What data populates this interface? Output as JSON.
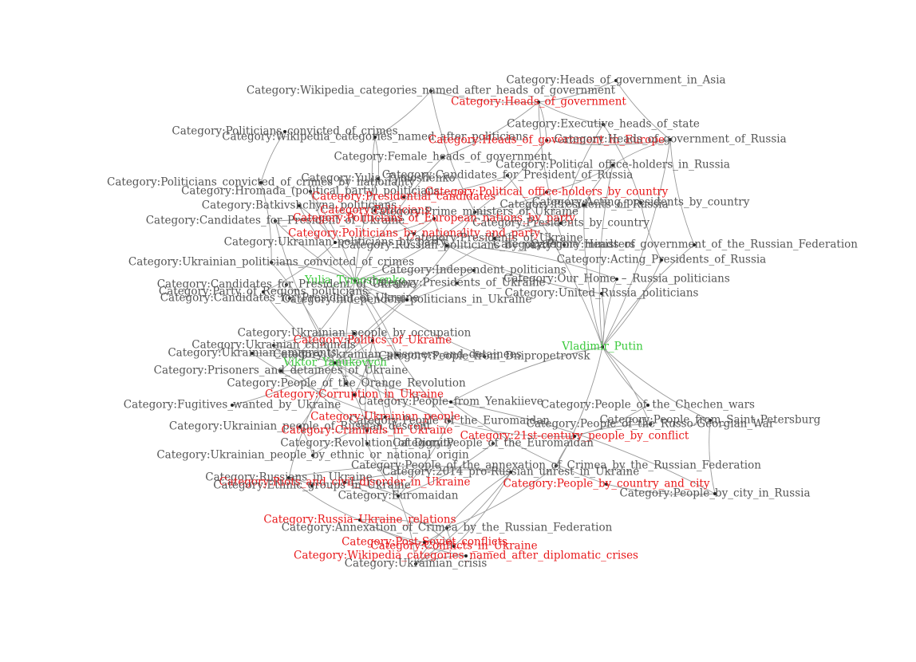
{
  "colors": {
    "background": "#ffffff",
    "edge": "#9a9a9a",
    "label_default": "#555555",
    "label_highlight": "#e8191b",
    "label_focus": "#39c93b"
  },
  "graph": {
    "nodes": [
      {
        "id": "putin",
        "label": "Vladimir_Putin",
        "style": "focus"
      },
      {
        "id": "yanukovych",
        "label": "Viktor_Yanukovych",
        "style": "focus"
      },
      {
        "id": "tymoshenko",
        "label": "Yulia_Tymoshenko",
        "style": "focus"
      },
      {
        "id": "heads_asia",
        "label": "Category:Heads_of_government_in_Asia",
        "style": "default"
      },
      {
        "id": "heads_gov",
        "label": "Category:Heads_of_government",
        "style": "highlight"
      },
      {
        "id": "wiki_heads",
        "label": "Category:Wikipedia_categories_named_after_heads_of_government",
        "style": "default"
      },
      {
        "id": "exec_heads",
        "label": "Category:Executive_heads_of_state",
        "style": "default"
      },
      {
        "id": "wiki_politicians",
        "label": "Category:Wikipedia_categories_named_after_politicians",
        "style": "default"
      },
      {
        "id": "heads_europe",
        "label": "Category:Heads_of_government_in_Europe",
        "style": "highlight"
      },
      {
        "id": "heads_russia",
        "label": "Category:Heads_of_government_of_Russia",
        "style": "default"
      },
      {
        "id": "pol_convicted",
        "label": "Category:Politicians_convicted_of_crimes",
        "style": "default"
      },
      {
        "id": "female_heads",
        "label": "Category:Female_heads_of_government",
        "style": "default"
      },
      {
        "id": "pol_office_russia",
        "label": "Category:Political_office-holders_in_Russia",
        "style": "default"
      },
      {
        "id": "cand_pres_russia",
        "label": "Category:Candidates_for_President_of_Russia",
        "style": "default"
      },
      {
        "id": "pol_conv_nat",
        "label": "Category:Politicians_convicted_of_crimes_by_nationality",
        "style": "default"
      },
      {
        "id": "yulia_cat",
        "label": "Category:Yulia_Tymoshenko",
        "style": "default"
      },
      {
        "id": "hromada",
        "label": "Category:Hromada_(political_party)_politicians",
        "style": "default"
      },
      {
        "id": "pol_office_country",
        "label": "Category:Political_office-holders_by_country",
        "style": "highlight"
      },
      {
        "id": "pres_candidates",
        "label": "Category:Presidential_candidates",
        "style": "highlight"
      },
      {
        "id": "acting_pres_country",
        "label": "Category:Acting_presidents_by_country",
        "style": "default"
      },
      {
        "id": "batkiv",
        "label": "Category:Batkivshchyna_politicians",
        "style": "default"
      },
      {
        "id": "pres_russia",
        "label": "Category:Presidents_of_Russia",
        "style": "default"
      },
      {
        "id": "politicians",
        "label": "Category:Politicians",
        "style": "highlight"
      },
      {
        "id": "pm_ukraine",
        "label": "Category:Prime_ministers_of_Ukraine",
        "style": "default"
      },
      {
        "id": "cand_pres_ukraine",
        "label": "Category:Candidates_for_President_of_Ukraine",
        "style": "default"
      },
      {
        "id": "pol_euro_party",
        "label": "Category:Politicians_of_European_nations_by_party",
        "style": "highlight"
      },
      {
        "id": "pres_country",
        "label": "Category:Presidents_by_country",
        "style": "default"
      },
      {
        "id": "pol_nat_party",
        "label": "Category:Politicians_by_nationality_and_party",
        "style": "highlight"
      },
      {
        "id": "pres_ukraine",
        "label": "Category:Presidents_of_Ukraine",
        "style": "default"
      },
      {
        "id": "ukr_pol_party",
        "label": "Category:Ukrainian_politicians_by_party",
        "style": "default"
      },
      {
        "id": "russ_pol_party",
        "label": "Category:Russian_politicians_by_party",
        "style": "default"
      },
      {
        "id": "heads_russia_fed",
        "label": "Category:Heads_of_government_of_the_Russian_Federation",
        "style": "default"
      },
      {
        "id": "prime_ministers",
        "label": "Category:Prime_ministers",
        "style": "default"
      },
      {
        "id": "ukr_pol_convicted",
        "label": "Category:Ukrainian_politicians_convicted_of_crimes",
        "style": "default"
      },
      {
        "id": "acting_pres_russia",
        "label": "Category:Acting_Presidents_of_Russia",
        "style": "default"
      },
      {
        "id": "indep_pol",
        "label": "Category:Independent_politicians",
        "style": "default"
      },
      {
        "id": "our_home",
        "label": "Category:Our_Home_–_Russia_politicians",
        "style": "default"
      },
      {
        "id": "cand_pres_ukraine2",
        "label": "Category:Candidates_for_President_of_Ukraine",
        "style": "default"
      },
      {
        "id": "pres_ukraine2",
        "label": "Category:Presidents_of_Ukraine",
        "style": "default"
      },
      {
        "id": "party_regions",
        "label": "Category:Party_of_Regions_politicians",
        "style": "default"
      },
      {
        "id": "united_russia",
        "label": "Category:United_Russia_politicians",
        "style": "default"
      },
      {
        "id": "cand_pres_ukraine3",
        "label": "Category:Candidates_for_President_of_Ukraine",
        "style": "default"
      },
      {
        "id": "indep_pol_ukraine",
        "label": "Category:Independent_politicians_in_Ukraine",
        "style": "default"
      },
      {
        "id": "ukr_by_occupation",
        "label": "Category:Ukrainian_people_by_occupation",
        "style": "default"
      },
      {
        "id": "politics_ukraine",
        "label": "Category:Politics_of_Ukraine",
        "style": "highlight"
      },
      {
        "id": "ukr_criminals",
        "label": "Category:Ukrainian_criminals",
        "style": "default"
      },
      {
        "id": "ukr_emigrants",
        "label": "Category:Ukrainian_emigrants",
        "style": "default"
      },
      {
        "id": "ukr_prisoners",
        "label": "Category:Ukrainian_prisoners_and_detainees",
        "style": "default"
      },
      {
        "id": "people_dnipro",
        "label": "Category:People_from_Dnipropetrovsk",
        "style": "default"
      },
      {
        "id": "prisoners_ukraine",
        "label": "Category:Prisoners_and_detainees_of_Ukraine",
        "style": "default"
      },
      {
        "id": "orange_rev",
        "label": "Category:People_of_the_Orange_Revolution",
        "style": "default"
      },
      {
        "id": "corruption",
        "label": "Category:Corruption_in_Ukraine",
        "style": "highlight"
      },
      {
        "id": "fugitives",
        "label": "Category:Fugitives_wanted_by_Ukraine",
        "style": "default"
      },
      {
        "id": "people_yenakiieve",
        "label": "Category:People_from_Yenakiieve",
        "style": "default"
      },
      {
        "id": "chechen_wars",
        "label": "Category:People_of_the_Chechen_wars",
        "style": "default"
      },
      {
        "id": "ukr_people",
        "label": "Category:Ukrainian_people",
        "style": "highlight"
      },
      {
        "id": "euromaidan_people",
        "label": "Category:People_of_the_Euromaidan",
        "style": "default"
      },
      {
        "id": "people_spb",
        "label": "Category:People_from_Saint_Petersburg",
        "style": "default"
      },
      {
        "id": "ukr_ethnic_people",
        "label": "Category:Ukrainian_people_of_Russian_descent",
        "style": "default"
      },
      {
        "id": "criminals_ukraine",
        "label": "Category:Criminals_in_Ukraine",
        "style": "highlight"
      },
      {
        "id": "russo_georgian",
        "label": "Category:People_of_the_Russo-Georgian_War",
        "style": "default"
      },
      {
        "id": "conflicts_21c",
        "label": "Category:21st-century_people_by_conflict",
        "style": "highlight"
      },
      {
        "id": "ukr_by_ethnic",
        "label": "Category:Ukrainian_people_by_ethnic_or_national_origin",
        "style": "default"
      },
      {
        "id": "rev_dignity",
        "label": "Category:Revolution_of_Dignity",
        "style": "default"
      },
      {
        "id": "people_euromaidan2",
        "label": "Category:People_of_the_Euromaidan",
        "style": "default"
      },
      {
        "id": "annex_people",
        "label": "Category:People_of_the_annexation_of_Crimea_by_the_Russian_Federation",
        "style": "default"
      },
      {
        "id": "russians_ukraine",
        "label": "Category:Russians_in_Ukraine",
        "style": "default"
      },
      {
        "id": "unrest_2014",
        "label": "Category:2014_pro-Russian_unrest_in_Ukraine",
        "style": "default"
      },
      {
        "id": "riots",
        "label": "Category:Riots_and_civil_disorder_in_Ukraine",
        "style": "highlight"
      },
      {
        "id": "ethnic_groups",
        "label": "Category:Ethnic_groups_in_Ukraine",
        "style": "default"
      },
      {
        "id": "people_country_city",
        "label": "Category:People_by_country_and_city",
        "style": "highlight"
      },
      {
        "id": "people_city_russia",
        "label": "Category:People_by_city_in_Russia",
        "style": "default"
      },
      {
        "id": "euromaidan",
        "label": "Category:Euromaidan",
        "style": "default"
      },
      {
        "id": "russia_ukraine",
        "label": "Category:Russia–Ukraine_relations",
        "style": "highlight"
      },
      {
        "id": "annex_crimea",
        "label": "Category:Annexation_of_Crimea_by_the_Russian_Federation",
        "style": "default"
      },
      {
        "id": "post_soviet",
        "label": "Category:Post-Soviet_conflicts",
        "style": "highlight"
      },
      {
        "id": "conflicts_ukraine",
        "label": "Category:Conflicts_in_Ukraine",
        "style": "highlight"
      },
      {
        "id": "wiki_diplomatic",
        "label": "Category:Wikipedia_categories_named_after_diplomatic_crises",
        "style": "highlight"
      },
      {
        "id": "ukr_crisis",
        "label": "Category:Ukrainian_crisis",
        "style": "default"
      }
    ],
    "edges": [
      [
        "putin",
        "heads_russia"
      ],
      [
        "putin",
        "pres_russia"
      ],
      [
        "putin",
        "acting_pres_russia"
      ],
      [
        "putin",
        "our_home"
      ],
      [
        "putin",
        "united_russia"
      ],
      [
        "putin",
        "heads_russia_fed"
      ],
      [
        "putin",
        "chechen_wars"
      ],
      [
        "putin",
        "russo_georgian"
      ],
      [
        "putin",
        "people_spb"
      ],
      [
        "putin",
        "annex_people"
      ],
      [
        "putin",
        "cand_pres_russia"
      ],
      [
        "putin",
        "pol_office_russia"
      ],
      [
        "putin",
        "people_yenakiieve"
      ],
      [
        "yanukovych",
        "pres_ukraine"
      ],
      [
        "yanukovych",
        "pm_ukraine"
      ],
      [
        "yanukovych",
        "party_regions"
      ],
      [
        "yanukovych",
        "ukr_pol_convicted"
      ],
      [
        "yanukovych",
        "cand_pres_ukraine"
      ],
      [
        "yanukovych",
        "people_yenakiieve"
      ],
      [
        "yanukovych",
        "fugitives"
      ],
      [
        "yanukovych",
        "ukr_criminals"
      ],
      [
        "yanukovych",
        "prisoners_ukraine"
      ],
      [
        "yanukovych",
        "euromaidan_people"
      ],
      [
        "yanukovych",
        "orange_rev"
      ],
      [
        "yanukovych",
        "ukr_emigrants"
      ],
      [
        "yanukovych",
        "people_dnipro"
      ],
      [
        "yanukovych",
        "ukr_prisoners"
      ],
      [
        "yanukovych",
        "ukr_ethnic_people"
      ],
      [
        "yanukovych",
        "russians_ukraine"
      ],
      [
        "yanukovych",
        "corruption"
      ],
      [
        "yanukovych",
        "politics_ukraine"
      ],
      [
        "tymoshenko",
        "yulia_cat"
      ],
      [
        "tymoshenko",
        "pm_ukraine"
      ],
      [
        "tymoshenko",
        "batkiv"
      ],
      [
        "tymoshenko",
        "hromada"
      ],
      [
        "tymoshenko",
        "cand_pres_ukraine"
      ],
      [
        "tymoshenko",
        "ukr_pol_convicted"
      ],
      [
        "tymoshenko",
        "female_heads"
      ],
      [
        "tymoshenko",
        "people_dnipro"
      ],
      [
        "tymoshenko",
        "prisoners_ukraine"
      ],
      [
        "tymoshenko",
        "orange_rev"
      ],
      [
        "tymoshenko",
        "ukr_prisoners"
      ],
      [
        "tymoshenko",
        "euromaidan_people"
      ],
      [
        "tymoshenko",
        "indep_pol"
      ],
      [
        "tymoshenko",
        "indep_pol_ukraine"
      ],
      [
        "heads_asia",
        "heads_gov"
      ],
      [
        "heads_asia",
        "heads_russia"
      ],
      [
        "heads_gov",
        "heads_europe"
      ],
      [
        "heads_gov",
        "exec_heads"
      ],
      [
        "heads_gov",
        "female_heads"
      ],
      [
        "heads_gov",
        "prime_ministers"
      ],
      [
        "heads_gov",
        "wiki_heads"
      ],
      [
        "wiki_heads",
        "pm_ukraine"
      ],
      [
        "wiki_heads",
        "wiki_politicians"
      ],
      [
        "wiki_politicians",
        "politicians"
      ],
      [
        "wiki_politicians",
        "yulia_cat"
      ],
      [
        "exec_heads",
        "pres_country"
      ],
      [
        "exec_heads",
        "acting_pres_country"
      ],
      [
        "heads_europe",
        "heads_russia"
      ],
      [
        "heads_europe",
        "pm_ukraine"
      ],
      [
        "heads_russia",
        "heads_russia_fed"
      ],
      [
        "pol_office_russia",
        "heads_russia"
      ],
      [
        "pol_office_russia",
        "pres_russia"
      ],
      [
        "pol_office_russia",
        "pol_office_country"
      ],
      [
        "pol_convicted",
        "pol_conv_nat"
      ],
      [
        "pol_conv_nat",
        "ukr_pol_convicted"
      ],
      [
        "pres_candidates",
        "cand_pres_russia"
      ],
      [
        "pres_candidates",
        "cand_pres_ukraine"
      ],
      [
        "acting_pres_country",
        "acting_pres_russia"
      ],
      [
        "pres_country",
        "pres_russia"
      ],
      [
        "pres_country",
        "pres_ukraine"
      ],
      [
        "politicians",
        "pol_nat_party"
      ],
      [
        "pol_nat_party",
        "pol_euro_party"
      ],
      [
        "pol_euro_party",
        "ukr_pol_party"
      ],
      [
        "pol_euro_party",
        "russ_pol_party"
      ],
      [
        "russ_pol_party",
        "our_home"
      ],
      [
        "russ_pol_party",
        "united_russia"
      ],
      [
        "ukr_pol_party",
        "party_regions"
      ],
      [
        "ukr_pol_party",
        "batkiv"
      ],
      [
        "ukr_pol_party",
        "hromada"
      ],
      [
        "pol_office_country",
        "pres_ukraine"
      ],
      [
        "pol_office_country",
        "pm_ukraine"
      ],
      [
        "prime_ministers",
        "pm_ukraine"
      ],
      [
        "indep_pol",
        "indep_pol_ukraine"
      ],
      [
        "ukr_by_occupation",
        "ukr_criminals"
      ],
      [
        "ukr_by_occupation",
        "ukr_people"
      ],
      [
        "ukr_people",
        "ukr_by_ethnic"
      ],
      [
        "ukr_people",
        "ukr_emigrants"
      ],
      [
        "ukr_by_ethnic",
        "ukr_ethnic_people"
      ],
      [
        "criminals_ukraine",
        "ukr_criminals"
      ],
      [
        "criminals_ukraine",
        "corruption"
      ],
      [
        "politics_ukraine",
        "corruption"
      ],
      [
        "politics_ukraine",
        "rev_dignity"
      ],
      [
        "politics_ukraine",
        "euromaidan"
      ],
      [
        "conflicts_21c",
        "chechen_wars"
      ],
      [
        "conflicts_21c",
        "russo_georgian"
      ],
      [
        "conflicts_21c",
        "annex_people"
      ],
      [
        "conflicts_21c",
        "euromaidan_people"
      ],
      [
        "people_country_city",
        "people_city_russia"
      ],
      [
        "people_city_russia",
        "people_spb"
      ],
      [
        "euromaidan",
        "euromaidan_people"
      ],
      [
        "euromaidan",
        "rev_dignity"
      ],
      [
        "euromaidan",
        "riots"
      ],
      [
        "euromaidan",
        "ukr_crisis"
      ],
      [
        "euromaidan",
        "people_euromaidan2"
      ],
      [
        "annex_people",
        "annex_crimea"
      ],
      [
        "annex_crimea",
        "russia_ukraine"
      ],
      [
        "annex_crimea",
        "unrest_2014"
      ],
      [
        "annex_crimea",
        "ukr_crisis"
      ],
      [
        "annex_crimea",
        "post_soviet"
      ],
      [
        "annex_crimea",
        "conflicts_ukraine"
      ],
      [
        "unrest_2014",
        "conflicts_ukraine"
      ],
      [
        "unrest_2014",
        "riots"
      ],
      [
        "unrest_2014",
        "ukr_crisis"
      ],
      [
        "unrest_2014",
        "russians_ukraine"
      ],
      [
        "russians_ukraine",
        "ethnic_groups"
      ],
      [
        "russians_ukraine",
        "russia_ukraine"
      ],
      [
        "riots",
        "conflicts_ukraine"
      ],
      [
        "russia_ukraine",
        "post_soviet"
      ],
      [
        "post_soviet",
        "conflicts_ukraine"
      ],
      [
        "wiki_diplomatic",
        "ukr_crisis"
      ],
      [
        "wiki_diplomatic",
        "russia_ukraine"
      ],
      [
        "conflicts_ukraine",
        "ukr_crisis"
      ],
      [
        "people_yenakiieve",
        "people_city_russia"
      ],
      [
        "people_yenakiieve",
        "people_country_city"
      ]
    ]
  }
}
